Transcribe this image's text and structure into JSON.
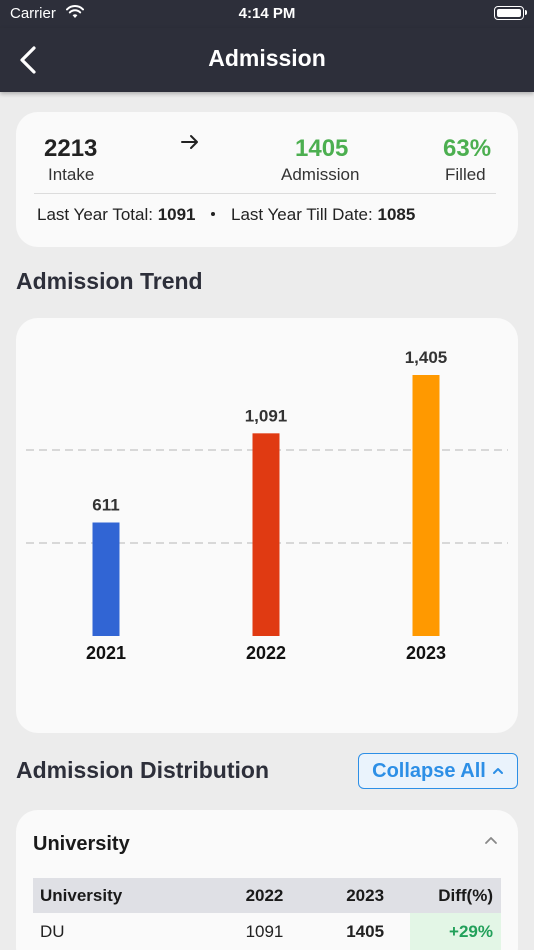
{
  "status_bar": {
    "carrier": "Carrier",
    "time": "4:14 PM"
  },
  "nav": {
    "title": "Admission"
  },
  "summary": {
    "intake_value": "2213",
    "intake_label": "Intake",
    "admission_value": "1405",
    "admission_label": "Admission",
    "filled_value": "63%",
    "filled_label": "Filled",
    "last_year_total_label": "Last Year Total:",
    "last_year_total_value": "1091",
    "last_year_till_date_label": "Last Year Till Date:",
    "last_year_till_date_value": "1085"
  },
  "trend": {
    "title": "Admission Trend"
  },
  "chart_data": {
    "type": "bar",
    "title": "",
    "categories": [
      "2021",
      "2022",
      "2023"
    ],
    "values": [
      611,
      1091,
      1405
    ],
    "value_labels": [
      "611",
      "1,091",
      "1,405"
    ],
    "colors": [
      "#3165d4",
      "#e03a12",
      "#ff9900"
    ],
    "ylim": [
      0,
      1405
    ],
    "grid": "dashed"
  },
  "distribution": {
    "title": "Admission Distribution",
    "collapse_label": "Collapse All",
    "group_label": "University",
    "columns": [
      "University",
      "2022",
      "2023",
      "Diff(%)"
    ],
    "rows": [
      {
        "name": "DU",
        "y2022": "1091",
        "y2023": "1405",
        "diff": "+29%"
      }
    ]
  },
  "colors": {
    "primary_dark": "#2d2f3a",
    "accent_green": "#4caf50",
    "link_blue": "#2d8fe6",
    "diff_green": "#22a05a"
  }
}
